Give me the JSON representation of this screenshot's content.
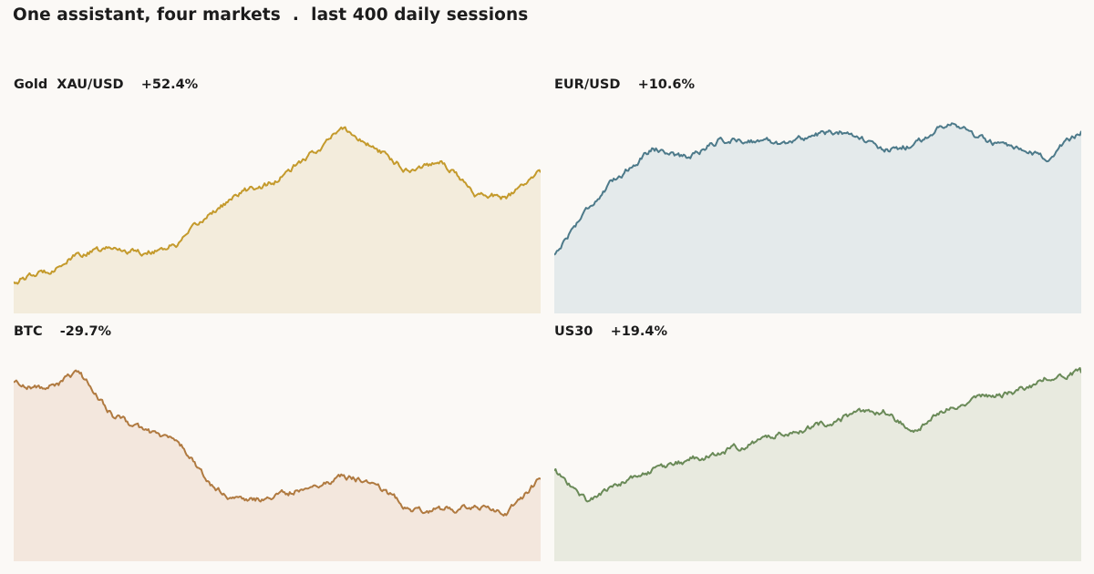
{
  "title": "One assistant, four markets  .  last 400 daily sessions",
  "chart_data": [
    {
      "type": "area",
      "name": "Gold  XAU/USD",
      "change": "+52.4%",
      "color": "#c49a2c",
      "fill": "#f3ecdc",
      "x": [
        0,
        25,
        50,
        75,
        100,
        125,
        150,
        175,
        200,
        225,
        250,
        275,
        300,
        325,
        350,
        375,
        400
      ],
      "y": [
        100,
        105,
        113,
        116,
        114,
        118,
        133,
        143,
        148,
        160,
        173,
        163,
        153,
        158,
        142,
        140,
        152
      ],
      "ylim": [
        85,
        185
      ]
    },
    {
      "type": "area",
      "name": "EUR/USD",
      "change": "+10.6%",
      "color": "#4d7a8a",
      "fill": "#e4eaeb",
      "x": [
        0,
        25,
        50,
        75,
        100,
        125,
        150,
        175,
        200,
        225,
        250,
        275,
        300,
        325,
        350,
        375,
        400
      ],
      "y": [
        100,
        104,
        106.8,
        109.2,
        108.3,
        109.8,
        109.8,
        109.6,
        110.3,
        110.6,
        108.8,
        109.5,
        111.5,
        109.9,
        108.9,
        108.3,
        110.6
      ],
      "ylim": [
        95,
        113
      ]
    },
    {
      "type": "area",
      "name": "BTC",
      "change": "-29.7%",
      "color": "#b07a40",
      "fill": "#f3e7dd",
      "x": [
        0,
        25,
        50,
        75,
        100,
        125,
        150,
        175,
        200,
        225,
        250,
        275,
        300,
        325,
        350,
        375,
        400
      ],
      "y": [
        100,
        98,
        103,
        90,
        85,
        82,
        68,
        63,
        65,
        68,
        71,
        69,
        61,
        61,
        61.5,
        60,
        70.3
      ],
      "ylim": [
        45,
        110
      ]
    },
    {
      "type": "area",
      "name": "US30",
      "change": "+19.4%",
      "color": "#6a8a58",
      "fill": "#e8eadf",
      "x": [
        0,
        25,
        50,
        75,
        100,
        125,
        150,
        175,
        200,
        225,
        250,
        275,
        300,
        325,
        350,
        375,
        400
      ],
      "y": [
        100,
        94,
        97.5,
        100,
        102,
        103.5,
        105.5,
        107.5,
        109,
        111,
        111.8,
        107.5,
        113,
        114.5,
        115.5,
        118.5,
        119.4
      ],
      "ylim": [
        82,
        124
      ]
    }
  ]
}
